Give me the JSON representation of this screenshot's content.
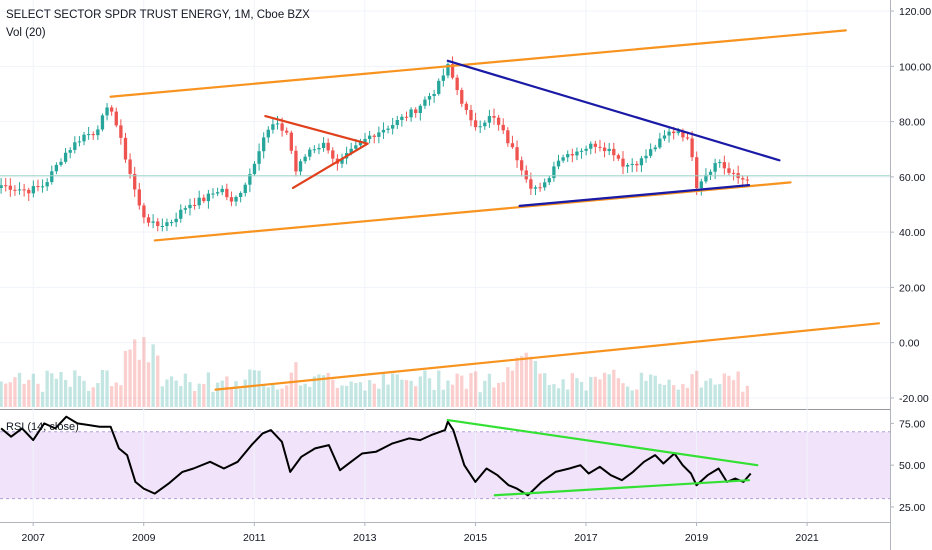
{
  "header": {
    "title": "SELECT SECTOR SPDR TRUST ENERGY, 1M, Cboe BZX",
    "volume_label": "Vol (20)",
    "rsi_label": "RSI (14, close)"
  },
  "colors": {
    "up": "#26a69a",
    "down": "#ef5350",
    "orange": "#f7931e",
    "navy": "#1a1aa6",
    "red_line": "#e0401c",
    "green_line": "#33e033",
    "rsi_band": "#f1e4fa",
    "rsi_band_border": "#b39ddb",
    "price_line": "#9fd5c9"
  },
  "chart_data": [
    {
      "type": "candlestick",
      "title": "SELECT SECTOR SPDR TRUST ENERGY, 1M, Cboe BZX",
      "timeframe": "1M",
      "x_axis": {
        "ticks": [
          "2007",
          "2009",
          "2011",
          "2013",
          "2015",
          "2017",
          "2019",
          "2021"
        ],
        "range": [
          2006.4,
          2022.5
        ]
      },
      "y_axis": {
        "ticks": [
          "120.00",
          "100.00",
          "80.00",
          "60.00",
          "40.00",
          "20.00",
          "0.00",
          "-20.00"
        ],
        "range": [
          -24,
          124
        ]
      },
      "current_price_line": 60.4,
      "close_anchors": [
        [
          2006.42,
          57
        ],
        [
          2006.9,
          55
        ],
        [
          2007.2,
          57
        ],
        [
          2007.55,
          68
        ],
        [
          2007.9,
          75
        ],
        [
          2008.1,
          76
        ],
        [
          2008.4,
          86
        ],
        [
          2008.6,
          72
        ],
        [
          2008.8,
          58
        ],
        [
          2008.95,
          47
        ],
        [
          2009.2,
          42
        ],
        [
          2009.5,
          44
        ],
        [
          2009.8,
          50
        ],
        [
          2010.1,
          52
        ],
        [
          2010.4,
          56
        ],
        [
          2010.6,
          50
        ],
        [
          2010.9,
          60
        ],
        [
          2011.15,
          74
        ],
        [
          2011.35,
          79
        ],
        [
          2011.6,
          76
        ],
        [
          2011.75,
          62
        ],
        [
          2012.0,
          70
        ],
        [
          2012.3,
          72
        ],
        [
          2012.5,
          64
        ],
        [
          2012.75,
          69
        ],
        [
          2013.1,
          75
        ],
        [
          2013.5,
          79
        ],
        [
          2013.9,
          84
        ],
        [
          2014.3,
          92
        ],
        [
          2014.5,
          100
        ],
        [
          2014.7,
          90
        ],
        [
          2014.95,
          78
        ],
        [
          2015.3,
          82
        ],
        [
          2015.5,
          76
        ],
        [
          2015.75,
          67
        ],
        [
          2016.0,
          57
        ],
        [
          2016.2,
          55
        ],
        [
          2016.5,
          67
        ],
        [
          2016.9,
          70
        ],
        [
          2017.2,
          72
        ],
        [
          2017.5,
          69
        ],
        [
          2017.7,
          64
        ],
        [
          2018.0,
          66
        ],
        [
          2018.2,
          70
        ],
        [
          2018.5,
          76
        ],
        [
          2018.7,
          77
        ],
        [
          2018.9,
          71
        ],
        [
          2019.0,
          57
        ],
        [
          2019.2,
          62
        ],
        [
          2019.4,
          66
        ],
        [
          2019.6,
          61
        ],
        [
          2019.8,
          59
        ],
        [
          2019.95,
          60
        ]
      ],
      "annotations": [
        {
          "name": "upper-channel-line",
          "color": "orange",
          "points": [
            [
              2008.4,
              89
            ],
            [
              2021.7,
              113
            ]
          ]
        },
        {
          "name": "lower-channel-line",
          "color": "orange",
          "points": [
            [
              2009.2,
              37
            ],
            [
              2020.7,
              58
            ]
          ]
        },
        {
          "name": "volume-trend-line",
          "color": "orange",
          "points": [
            [
              2010.3,
              -17
            ],
            [
              2022.3,
              7
            ]
          ]
        },
        {
          "name": "descending-resistance-line",
          "color": "navy",
          "points": [
            [
              2014.5,
              102
            ],
            [
              2020.5,
              66
            ]
          ]
        },
        {
          "name": "support-line",
          "color": "navy",
          "points": [
            [
              2015.8,
              49.5
            ],
            [
              2019.95,
              57
            ]
          ]
        },
        {
          "name": "pennant-upper-line",
          "color": "red_line",
          "points": [
            [
              2011.2,
              82
            ],
            [
              2013.05,
              72
            ]
          ]
        },
        {
          "name": "pennant-lower-line",
          "color": "red_line",
          "points": [
            [
              2011.7,
              56
            ],
            [
              2013.05,
              72
            ]
          ]
        }
      ]
    },
    {
      "type": "bar",
      "title": "Vol (20)",
      "note": "volume histogram overlaid at the bottom of the price pane"
    },
    {
      "type": "line",
      "title": "RSI (14, close)",
      "y_axis": {
        "ticks": [
          "75.00",
          "50.00",
          "25.00"
        ],
        "range": [
          16,
          83
        ]
      },
      "band": [
        30,
        70
      ],
      "points": [
        [
          2006.42,
          72
        ],
        [
          2006.6,
          67
        ],
        [
          2006.8,
          72
        ],
        [
          2007.0,
          65
        ],
        [
          2007.2,
          75
        ],
        [
          2007.4,
          72
        ],
        [
          2007.6,
          79
        ],
        [
          2007.8,
          75
        ],
        [
          2008.0,
          74
        ],
        [
          2008.2,
          73
        ],
        [
          2008.4,
          73
        ],
        [
          2008.55,
          60
        ],
        [
          2008.7,
          56
        ],
        [
          2008.85,
          40
        ],
        [
          2009.0,
          36
        ],
        [
          2009.2,
          33
        ],
        [
          2009.45,
          39
        ],
        [
          2009.7,
          46
        ],
        [
          2009.9,
          48
        ],
        [
          2010.2,
          52
        ],
        [
          2010.45,
          48
        ],
        [
          2010.7,
          52
        ],
        [
          2010.95,
          62
        ],
        [
          2011.15,
          69
        ],
        [
          2011.3,
          71
        ],
        [
          2011.5,
          64
        ],
        [
          2011.65,
          46
        ],
        [
          2011.85,
          55
        ],
        [
          2012.1,
          60
        ],
        [
          2012.35,
          62
        ],
        [
          2012.55,
          47
        ],
        [
          2012.75,
          52
        ],
        [
          2012.95,
          57
        ],
        [
          2013.2,
          58
        ],
        [
          2013.5,
          63
        ],
        [
          2013.8,
          66
        ],
        [
          2014.0,
          65
        ],
        [
          2014.2,
          68
        ],
        [
          2014.45,
          71
        ],
        [
          2014.5,
          76
        ],
        [
          2014.6,
          71
        ],
        [
          2014.8,
          50
        ],
        [
          2015.0,
          40
        ],
        [
          2015.2,
          48
        ],
        [
          2015.4,
          44
        ],
        [
          2015.6,
          38
        ],
        [
          2015.75,
          36
        ],
        [
          2015.95,
          32
        ],
        [
          2016.2,
          40
        ],
        [
          2016.45,
          46
        ],
        [
          2016.7,
          48
        ],
        [
          2016.9,
          50
        ],
        [
          2017.05,
          45
        ],
        [
          2017.25,
          49
        ],
        [
          2017.45,
          44
        ],
        [
          2017.65,
          41
        ],
        [
          2017.85,
          46
        ],
        [
          2018.05,
          52
        ],
        [
          2018.25,
          56
        ],
        [
          2018.4,
          51
        ],
        [
          2018.6,
          57
        ],
        [
          2018.75,
          50
        ],
        [
          2018.9,
          45
        ],
        [
          2019.0,
          38
        ],
        [
          2019.2,
          44
        ],
        [
          2019.4,
          48
        ],
        [
          2019.55,
          40
        ],
        [
          2019.7,
          42
        ],
        [
          2019.85,
          40
        ],
        [
          2019.98,
          45
        ]
      ],
      "annotations": [
        {
          "name": "rsi-descending-line",
          "color": "green_line",
          "points": [
            [
              2014.5,
              77
            ],
            [
              2020.1,
              50
            ]
          ]
        },
        {
          "name": "rsi-ascending-line",
          "color": "green_line",
          "points": [
            [
              2015.35,
              32
            ],
            [
              2019.95,
              41
            ]
          ]
        }
      ]
    }
  ]
}
